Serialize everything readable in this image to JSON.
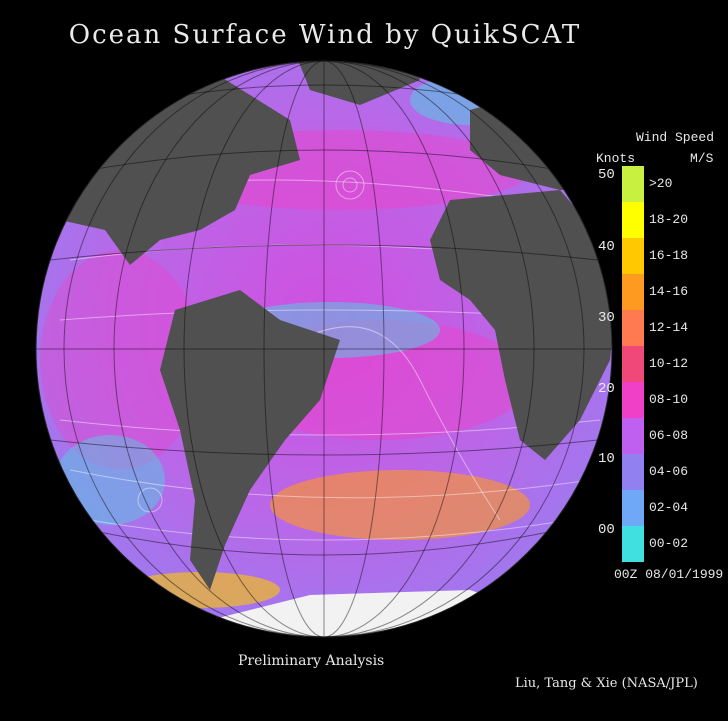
{
  "title": "Ocean Surface Wind by QuikSCAT",
  "legend": {
    "title": "Wind Speed",
    "left_unit": "Knots",
    "right_unit": "M/S",
    "knot_ticks": [
      "50",
      "40",
      "30",
      "20",
      "10",
      "00"
    ],
    "bins": [
      {
        "label": ">20",
        "color": "#c8f040"
      },
      {
        "label": "18-20",
        "color": "#ffff00"
      },
      {
        "label": "16-18",
        "color": "#ffc800"
      },
      {
        "label": "14-16",
        "color": "#ff9a20"
      },
      {
        "label": "12-14",
        "color": "#ff7a50"
      },
      {
        "label": "10-12",
        "color": "#f04878"
      },
      {
        "label": "08-10",
        "color": "#f040c8"
      },
      {
        "label": "06-08",
        "color": "#c060f0"
      },
      {
        "label": "04-06",
        "color": "#9080f0"
      },
      {
        "label": "02-04",
        "color": "#70a8f8"
      },
      {
        "label": "00-02",
        "color": "#40e0e0"
      }
    ]
  },
  "date_stamp": "00Z 08/01/1999",
  "footer_left": "Preliminary Analysis",
  "credit": "Liu, Tang & Xie (NASA/JPL)",
  "colors": {
    "background": "#000000",
    "land": "#505050",
    "ocean": "#c050e0",
    "ice": "#f2f2f2"
  }
}
